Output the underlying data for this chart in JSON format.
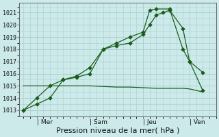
{
  "bg_color": "#cceaea",
  "grid_color": "#aacccc",
  "line_color": "#1a5c1a",
  "marker_color": "#1a5c1a",
  "xlabel": "Pression niveau de la mer( hPa )",
  "xlabel_fontsize": 8,
  "ylim": [
    1012.5,
    1021.8
  ],
  "yticks": [
    1013,
    1014,
    1015,
    1016,
    1017,
    1018,
    1019,
    1020,
    1021
  ],
  "xtick_labels": [
    "| Mer",
    "| Sam",
    "| Jeu",
    "| Ven"
  ],
  "xtick_positions": [
    1,
    5,
    9,
    12.5
  ],
  "num_x_points": 14,
  "line1_x": [
    0,
    1,
    2,
    3,
    4,
    5,
    6,
    7,
    8,
    9,
    9.5,
    10,
    11,
    12,
    12.5,
    13.5
  ],
  "line1_y": [
    1013.0,
    1013.5,
    1014.0,
    1015.5,
    1015.7,
    1016.0,
    1018.0,
    1018.5,
    1019.0,
    1019.4,
    1021.2,
    1021.3,
    1021.3,
    1018.0,
    1017.0,
    1016.1
  ],
  "line2_x": [
    0,
    1,
    2,
    3,
    4,
    5,
    6,
    7,
    8,
    9,
    9.5,
    10,
    10.5,
    11,
    12,
    12.5,
    13.5
  ],
  "line2_y": [
    1013.0,
    1014.0,
    1015.0,
    1015.5,
    1015.8,
    1016.5,
    1018.0,
    1018.3,
    1018.5,
    1019.2,
    1020.0,
    1020.8,
    1021.0,
    1021.2,
    1019.7,
    1017.0,
    1014.6
  ],
  "line3_x": [
    0,
    1,
    2,
    3,
    4,
    5,
    6,
    7,
    8,
    9,
    10,
    11,
    12,
    12.5,
    13.5
  ],
  "line3_y": [
    1015.0,
    1015.0,
    1015.0,
    1015.0,
    1015.0,
    1015.0,
    1014.95,
    1014.9,
    1014.9,
    1014.85,
    1014.8,
    1014.8,
    1014.8,
    1014.75,
    1014.5
  ],
  "xmin": -0.3,
  "xmax": 14.5
}
